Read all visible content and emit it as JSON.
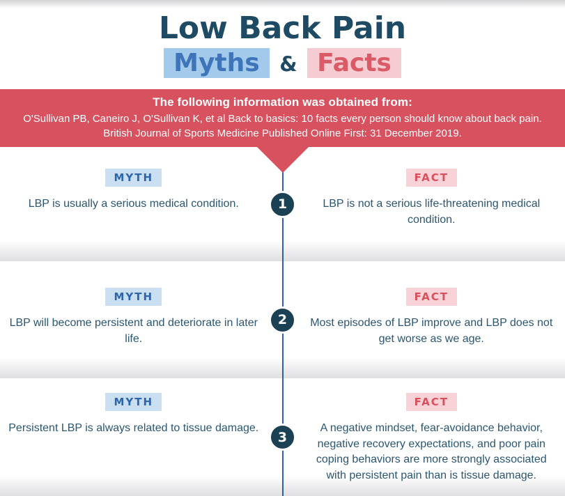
{
  "header": {
    "title": "Low Back Pain",
    "subtitle_myths": "Myths",
    "subtitle_amp": "&",
    "subtitle_facts": "Facts"
  },
  "banner": {
    "heading": "The following information was obtained from:",
    "citation": "O'Sullivan PB, Caneiro J, O'Sullivan K, et al Back to basics: 10 facts every person should know about back pain. British Journal of Sports Medicine Published Online First: 31 December 2019."
  },
  "labels": {
    "myth": "MYTH",
    "fact": "FACT"
  },
  "rows": [
    {
      "number": "1",
      "myth": "LBP is usually a serious medical condition.",
      "fact": "LBP is not a serious life-threatening medical condition."
    },
    {
      "number": "2",
      "myth": "LBP will become persistent and deteriorate in later life.",
      "fact": "Most episodes of LBP improve and LBP does not get worse as we age."
    },
    {
      "number": "3",
      "myth": "Persistent LBP is always related to tissue damage.",
      "fact": "A negative mindset, fear-avoidance behavior, negative recovery expectations, and poor pain coping behaviors are more strongly associated with persistent pain than is tissue damage."
    }
  ],
  "colors": {
    "title_navy": "#1e4a63",
    "body_text": "#2b5671",
    "banner_bg": "#d8515f",
    "banner_text": "#ffffff",
    "myths_highlight_bg": "#a3caeb",
    "myths_highlight_text": "#3e74b9",
    "facts_highlight_bg": "#f5ccd1",
    "facts_highlight_text": "#da5a65",
    "myth_badge_bg": "#cadff2",
    "myth_badge_text": "#2e66ad",
    "fact_badge_bg": "#f8d2d6",
    "fact_badge_text": "#d94f5c",
    "number_circle_bg": "#1b4154",
    "timeline_blue": "#2a62aa"
  }
}
